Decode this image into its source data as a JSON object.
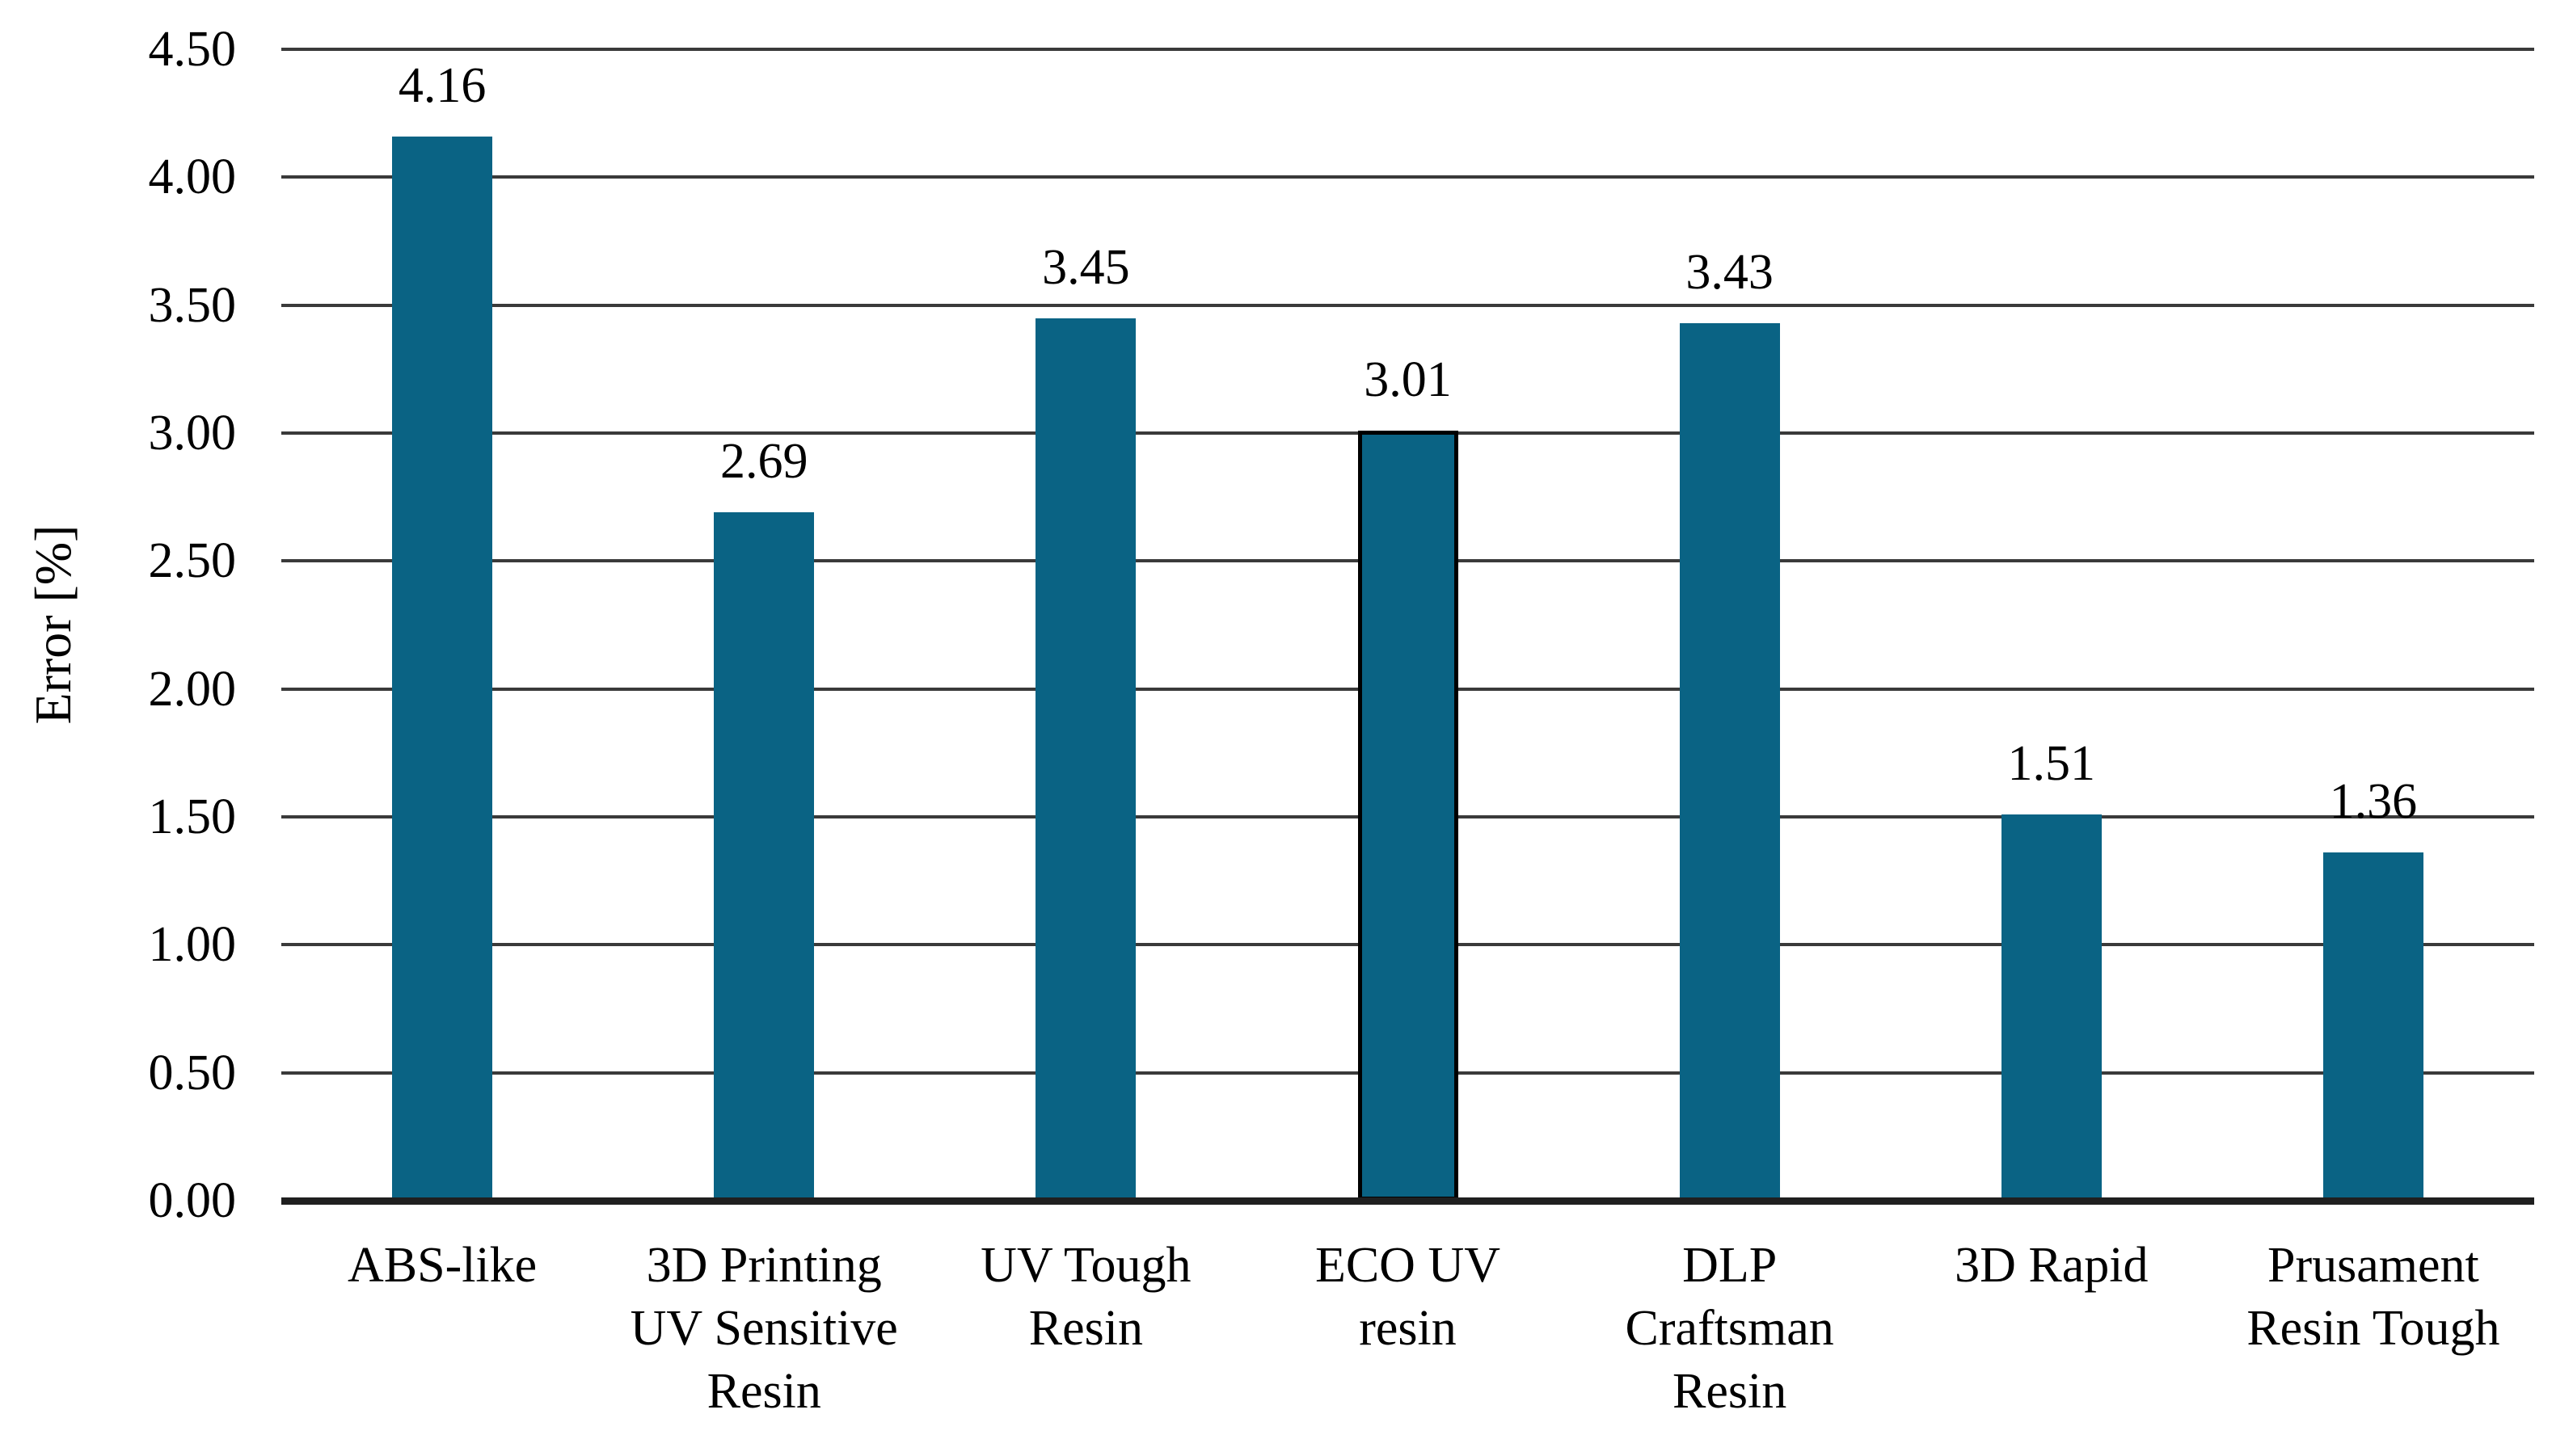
{
  "chart_data": {
    "type": "bar",
    "title": "",
    "ylabel": "Error [%]",
    "xlabel": "",
    "categories": [
      "ABS-like",
      "3D Printing UV Sensitive Resin",
      "UV Tough Resin",
      "ECO UV resin",
      "DLP Craftsman Resin",
      "3D Rapid",
      "Prusament Resin Tough"
    ],
    "category_label_lines": [
      [
        "ABS-like"
      ],
      [
        "3D Printing",
        "UV Sensitive",
        "Resin"
      ],
      [
        "UV Tough",
        "Resin"
      ],
      [
        "ECO UV",
        "resin"
      ],
      [
        "DLP",
        "Craftsman",
        "Resin"
      ],
      [
        "3D Rapid"
      ],
      [
        "Prusament",
        "Resin Tough"
      ]
    ],
    "values": [
      4.16,
      2.69,
      3.45,
      3.01,
      3.43,
      1.51,
      1.36
    ],
    "data_labels": [
      "4.16",
      "2.69",
      "3.45",
      "3.01",
      "3.43",
      "1.51",
      "1.36"
    ],
    "ylim": [
      0,
      4.5
    ],
    "ytick_step": 0.5,
    "ytick_labels": [
      "0.00",
      "0.50",
      "1.00",
      "1.50",
      "2.00",
      "2.50",
      "3.00",
      "3.50",
      "4.00",
      "4.50"
    ],
    "legend_position": "none",
    "grid": "horizontal",
    "colors": {
      "bar_fill": "#0a6384",
      "outlined_bar_border": "#000000",
      "gridline": "#3a3a3a",
      "axis_line": "#1f1f1f",
      "text": "#000000",
      "background": "#ffffff"
    },
    "outlined_bar_index": 3
  }
}
